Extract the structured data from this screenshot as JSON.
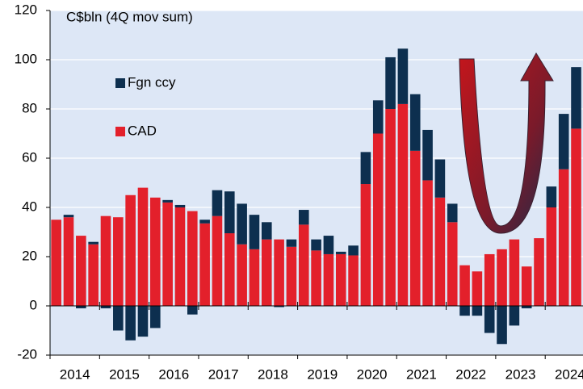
{
  "chart_data": {
    "type": "stacked-bar",
    "y_label": "C$bln (4Q mov sum)",
    "categories": [
      null,
      "2014",
      null,
      null,
      null,
      "2015",
      null,
      null,
      null,
      "2016",
      null,
      null,
      null,
      "2017",
      null,
      null,
      null,
      "2018",
      null,
      null,
      null,
      "2019",
      null,
      null,
      null,
      "2020",
      null,
      null,
      null,
      "2021",
      null,
      null,
      null,
      "2022",
      null,
      null,
      null,
      "2023",
      null,
      null,
      null,
      "2024",
      null
    ],
    "series": [
      {
        "name": "CAD",
        "color": "#e3202b",
        "values": [
          35,
          36,
          28.5,
          25,
          36.5,
          36,
          45,
          48,
          44,
          42,
          40,
          38.5,
          33.5,
          36.5,
          29.5,
          25,
          23,
          27,
          27,
          24,
          33,
          22.5,
          21,
          21,
          20.5,
          49.5,
          70,
          80,
          82,
          63,
          51,
          44,
          34,
          16.5,
          14,
          21,
          23,
          27,
          16,
          27.5,
          40,
          55.5,
          72
        ]
      },
      {
        "name": "Fgn ccy",
        "color": "#0d2f4f",
        "values": [
          0,
          1,
          -1,
          1,
          -1,
          -10,
          -14,
          -12.5,
          -9,
          1,
          1,
          -3.5,
          1.5,
          10.5,
          17,
          16.5,
          14,
          7,
          -0.5,
          3,
          6,
          4.5,
          7.5,
          1,
          4,
          13,
          13.5,
          21,
          22.5,
          23,
          20.5,
          15.5,
          7.5,
          -4,
          -4,
          -11,
          -15.5,
          -8,
          -1,
          0,
          8.5,
          22.5,
          25
        ]
      }
    ],
    "ylim": [
      -20,
      120
    ],
    "yticks": [
      -20,
      0,
      20,
      40,
      60,
      80,
      100,
      120
    ],
    "grid": true,
    "legend": "upper left"
  }
}
